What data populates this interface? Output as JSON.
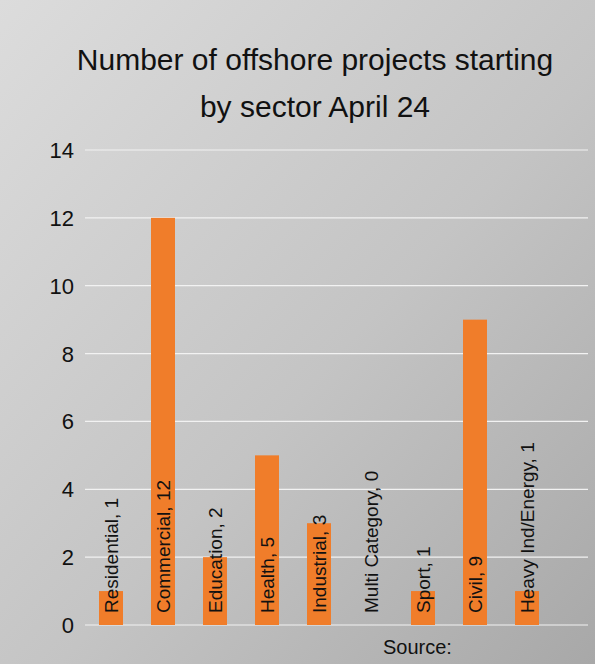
{
  "chart_data": {
    "type": "bar",
    "title": "Number of offshore projects starting by sector April 24",
    "categories": [
      "Residential",
      "Commercial",
      "Education",
      "Health",
      "Industrial",
      "Multi Category",
      "Sport",
      "Civil",
      "Heavy Ind/Energy"
    ],
    "values": [
      1,
      12,
      2,
      5,
      3,
      0,
      1,
      9,
      1
    ],
    "value_labels": [
      "Residential, 1",
      "Commercial, 12",
      "Education, 2",
      "Health, 5",
      "Industrial, 3",
      "Multi Category, 0",
      "Sport, 1",
      "Civil, 9",
      "Heavy Ind/Energy, 1"
    ],
    "color": "#f07d2a",
    "ylim": [
      0,
      14
    ],
    "yticks": [
      0,
      2,
      4,
      6,
      8,
      10,
      12,
      14
    ],
    "grid": true,
    "data_labels": true,
    "tick_labels": "y",
    "source": "Source:"
  }
}
